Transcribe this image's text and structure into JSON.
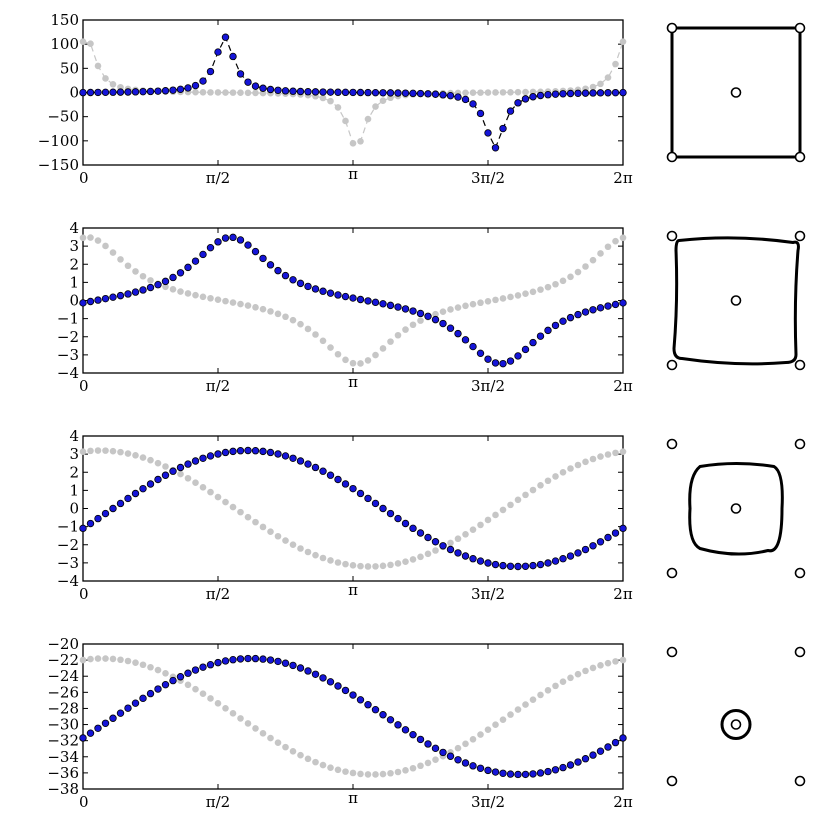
{
  "chart_data": [
    {
      "type": "scatter",
      "model": "resonant",
      "amplitude": 115,
      "peak": 1.65,
      "width": 0.13,
      "offset": 0,
      "ylim": [
        -150,
        150
      ],
      "yticks": [
        -150,
        -100,
        -50,
        0,
        50,
        100,
        150
      ],
      "xlim": [
        0,
        6.2832
      ],
      "xticks": [
        "0",
        "π/2",
        "π",
        "3π/2",
        "2π"
      ],
      "markers": {
        "series_a": "#1515d8",
        "series_b": "#c6c6c6"
      },
      "contour": "square",
      "dashed": true
    },
    {
      "type": "scatter",
      "model": "resonant",
      "amplitude": 3.6,
      "peak": 1.72,
      "width": 0.55,
      "offset": 0,
      "ylim": [
        -4,
        4
      ],
      "yticks": [
        -4,
        -3,
        -2,
        -1,
        0,
        1,
        2,
        3,
        4
      ],
      "xlim": [
        0,
        6.2832
      ],
      "xticks": [
        "0",
        "π/2",
        "π",
        "3π/2",
        "2π"
      ],
      "markers": {
        "series_a": "#1515d8",
        "series_b": "#c6c6c6"
      },
      "contour": "rounded-square",
      "dashed": false
    },
    {
      "type": "scatter",
      "model": "sinusoid",
      "amplitude": 3.2,
      "peak": 1.92,
      "offset": 0,
      "ylim": [
        -4,
        4
      ],
      "yticks": [
        -4,
        -3,
        -2,
        -1,
        0,
        1,
        2,
        3,
        4
      ],
      "xlim": [
        0,
        6.2832
      ],
      "xticks": [
        "0",
        "π/2",
        "π",
        "3π/2",
        "2π"
      ],
      "markers": {
        "series_a": "#1515d8",
        "series_b": "#c6c6c6"
      },
      "contour": "blob",
      "dashed": false
    },
    {
      "type": "scatter",
      "model": "sinusoid",
      "amplitude": 7.2,
      "peak": 1.95,
      "offset": -29,
      "ylim": [
        -38,
        -20
      ],
      "yticks": [
        -38,
        -36,
        -34,
        -32,
        -30,
        -28,
        -26,
        -24,
        -22,
        -20
      ],
      "xlim": [
        0,
        6.2832
      ],
      "xticks": [
        "0",
        "π/2",
        "π",
        "3π/2",
        "2π"
      ],
      "markers": {
        "series_a": "#1515d8",
        "series_b": "#c6c6c6"
      },
      "contour": "small-circle",
      "dashed": false
    }
  ]
}
